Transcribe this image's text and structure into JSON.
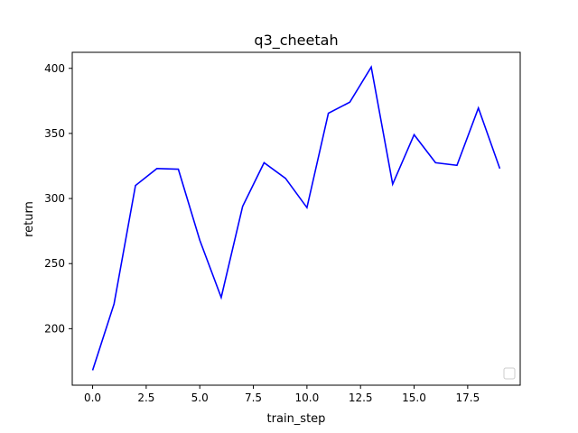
{
  "chart_data": {
    "type": "line",
    "title": "q3_cheetah",
    "xlabel": "train_step",
    "ylabel": "return",
    "xlim": [
      -0.95,
      19.95
    ],
    "ylim": [
      156.6,
      412.3
    ],
    "xticks": [
      0.0,
      2.5,
      5.0,
      7.5,
      10.0,
      12.5,
      15.0,
      17.5
    ],
    "xtick_labels": [
      "0.0",
      "2.5",
      "5.0",
      "7.5",
      "10.0",
      "12.5",
      "15.0",
      "17.5"
    ],
    "yticks": [
      200,
      250,
      300,
      350,
      400
    ],
    "ytick_labels": [
      "200",
      "250",
      "300",
      "350",
      "400"
    ],
    "grid": false,
    "legend": "lower-right (empty)",
    "series": [
      {
        "color": "#0000ff",
        "x": [
          0,
          1,
          2,
          3,
          4,
          5,
          6,
          7,
          8,
          9,
          10,
          11,
          12,
          13,
          14,
          15,
          16,
          17,
          18,
          19
        ],
        "y": [
          168,
          219,
          310,
          323,
          322.5,
          268,
          224,
          294,
          327.5,
          315.5,
          293,
          365.5,
          374,
          401,
          311,
          349,
          327.5,
          325.5,
          369.5,
          323
        ]
      }
    ]
  }
}
